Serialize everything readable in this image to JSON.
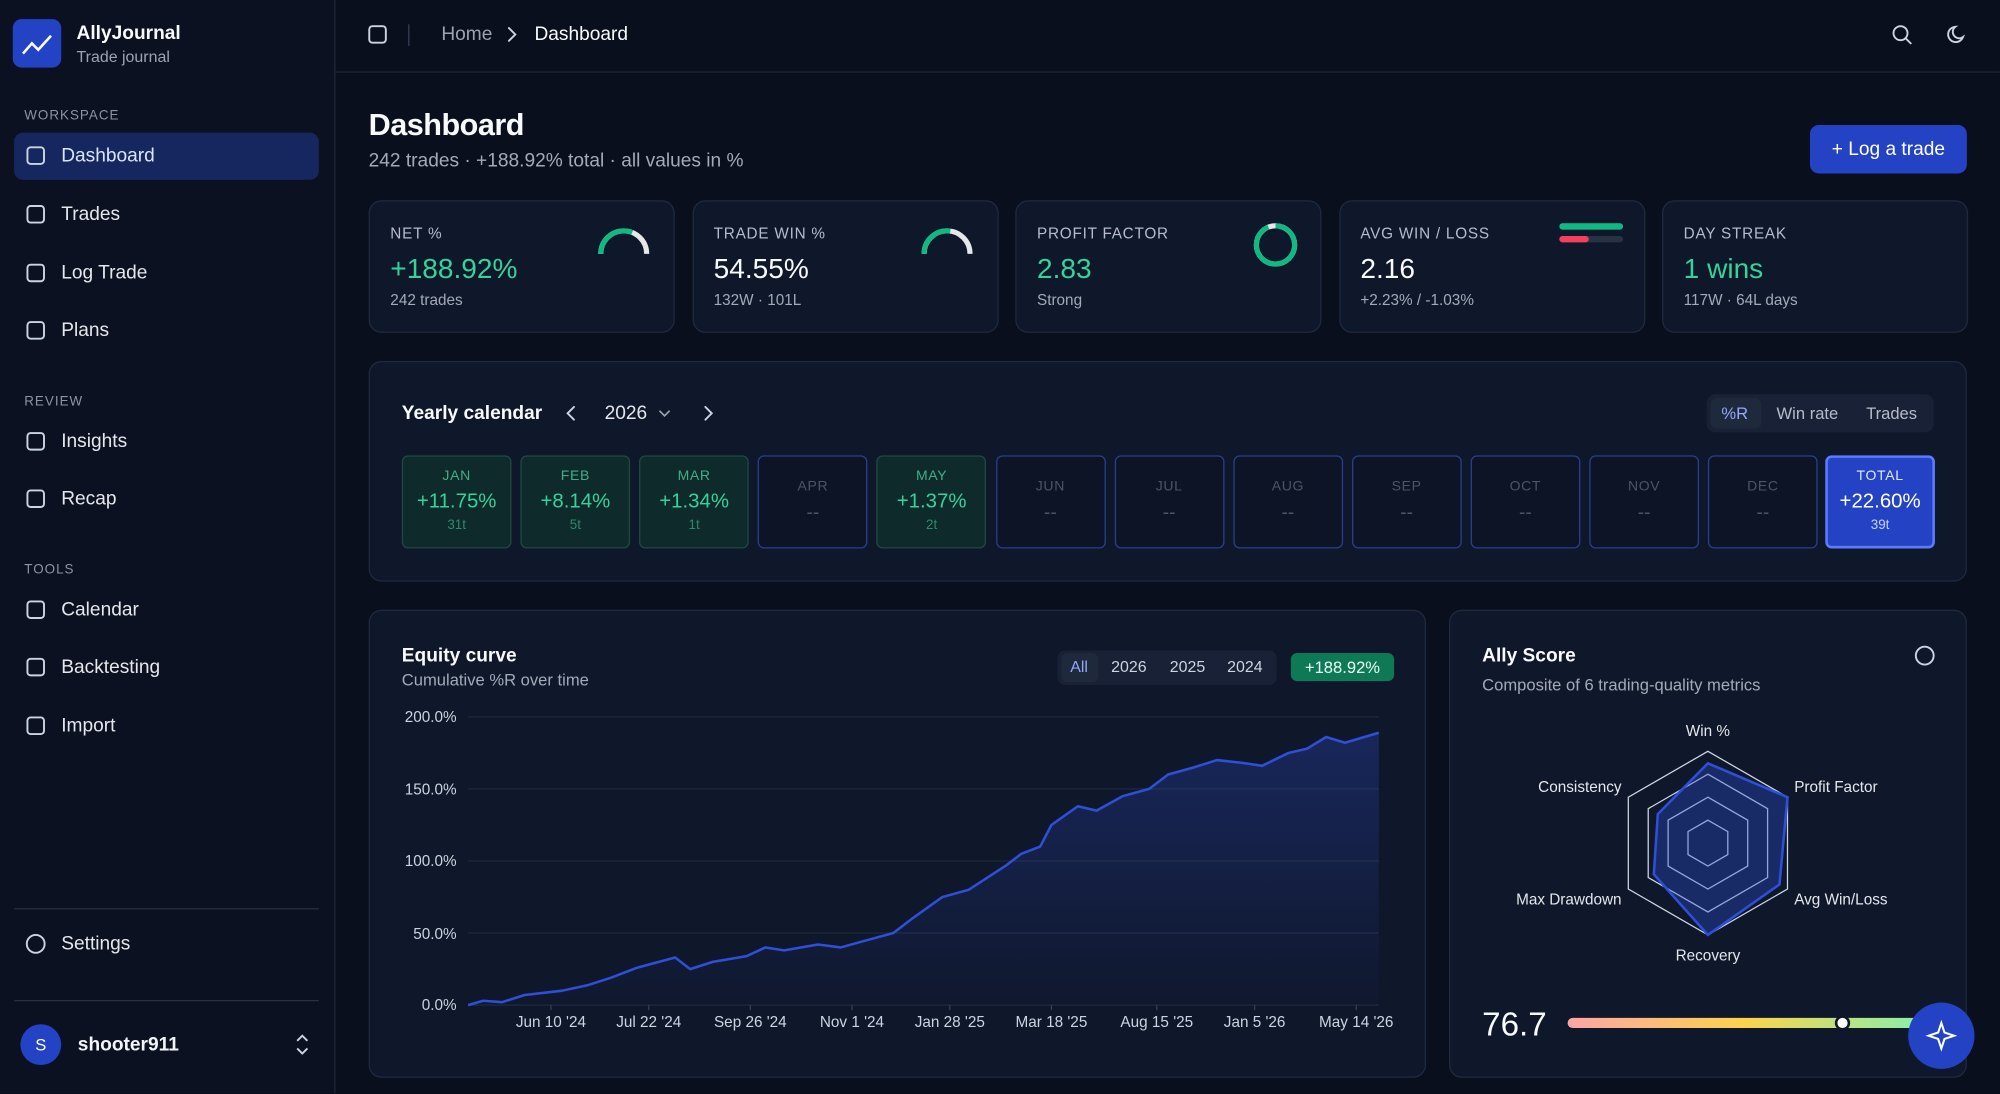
{
  "sidebar": {
    "brand": {
      "name": "AllyJournal",
      "subtitle": "Trade journal"
    },
    "sections": [
      {
        "label": "WORKSPACE",
        "items": [
          "Dashboard",
          "Trades",
          "Log Trade",
          "Plans"
        ]
      },
      {
        "label": "REVIEW",
        "items": [
          "Insights",
          "Recap"
        ]
      },
      {
        "label": "TOOLS",
        "items": [
          "Calendar",
          "Backtesting",
          "Import"
        ]
      }
    ],
    "settings": "Settings",
    "user": {
      "initial": "S",
      "name": "shooter911"
    }
  },
  "header": {
    "breadcrumb": [
      "Home",
      "Dashboard"
    ]
  },
  "page": {
    "title": "Dashboard",
    "subtitle": "242 trades · +188.92% total · all values in %",
    "action": "+ Log a trade"
  },
  "kpis": [
    {
      "label": "NET %",
      "value": "+188.92%",
      "note": "242 trades",
      "gauge": 62,
      "color": "#34d399"
    },
    {
      "label": "TRADE WIN %",
      "value": "54.55%",
      "note": "132W · 101L",
      "gauge": 54.55
    },
    {
      "label": "PROFIT FACTOR",
      "value": "2.83",
      "note": "Strong",
      "ring": 94,
      "color": "#34d399"
    },
    {
      "label": "AVG WIN / LOSS",
      "value": "2.16",
      "note": "+2.23% / -1.03%",
      "bars": [
        2.23,
        1.03
      ]
    },
    {
      "label": "DAY STREAK",
      "value": "1 wins",
      "note": "117W · 64L days",
      "color": "#34d399"
    }
  ],
  "calendar": {
    "title": "Yearly calendar",
    "year": "2026",
    "tabs": [
      "%R",
      "Win rate",
      "Trades"
    ],
    "months": [
      {
        "name": "JAN",
        "value": "+11.75%",
        "trades": "31t"
      },
      {
        "name": "FEB",
        "value": "+8.14%",
        "trades": "5t"
      },
      {
        "name": "MAR",
        "value": "+1.34%",
        "trades": "1t"
      },
      {
        "name": "APR",
        "value": "--"
      },
      {
        "name": "MAY",
        "value": "+1.37%",
        "trades": "2t"
      },
      {
        "name": "JUN",
        "value": "--"
      },
      {
        "name": "JUL",
        "value": "--"
      },
      {
        "name": "AUG",
        "value": "--"
      },
      {
        "name": "SEP",
        "value": "--"
      },
      {
        "name": "OCT",
        "value": "--"
      },
      {
        "name": "NOV",
        "value": "--"
      },
      {
        "name": "DEC",
        "value": "--"
      }
    ],
    "total": {
      "name": "TOTAL",
      "value": "+22.60%",
      "trades": "39t"
    }
  },
  "equity": {
    "title": "Equity curve",
    "subtitle": "Cumulative %R over time",
    "filters": [
      "All",
      "2026",
      "2025",
      "2024"
    ],
    "badge": "+188.92%"
  },
  "ally": {
    "title": "Ally Score",
    "subtitle": "Composite of 6 trading-quality metrics",
    "score": 76.7,
    "scale": [
      0,
      100
    ]
  },
  "chart_data": [
    {
      "type": "line",
      "color": "#2f4fd8",
      "grid": true,
      "x": [
        0,
        4,
        9,
        15,
        25,
        32,
        38,
        45,
        55,
        59,
        65,
        74,
        79,
        84,
        93,
        99,
        106,
        113,
        118,
        126,
        133,
        143,
        147,
        152,
        155,
        162,
        167,
        174,
        181,
        186,
        193,
        199,
        206,
        211,
        218,
        223,
        228,
        233,
        242
      ],
      "values": [
        0,
        3,
        2,
        7,
        10,
        14,
        19,
        26,
        33,
        25,
        30,
        34,
        40,
        38,
        42,
        40,
        45,
        50,
        60,
        75,
        80,
        97,
        105,
        110,
        125,
        138,
        135,
        145,
        150,
        160,
        165,
        170,
        168,
        166,
        175,
        178,
        186,
        182,
        188.92
      ],
      "xlim": [
        0,
        242
      ],
      "ylim": [
        0,
        200
      ],
      "xticks": [
        {
          "value": 22,
          "label": "Jun 10 '24"
        },
        {
          "value": 48,
          "label": "Jul 22 '24"
        },
        {
          "value": 75,
          "label": "Sep 26 '24"
        },
        {
          "value": 102,
          "label": "Nov 1 '24"
        },
        {
          "value": 128,
          "label": "Jan 28 '25"
        },
        {
          "value": 155,
          "label": "Mar 18 '25"
        },
        {
          "value": 183,
          "label": "Aug 15 '25"
        },
        {
          "value": 209,
          "label": "Jan 5 '26"
        },
        {
          "value": 236,
          "label": "May 14 '26"
        }
      ],
      "yticks": [
        {
          "value": 0,
          "label": "0.0%"
        },
        {
          "value": 50,
          "label": "50.0%"
        },
        {
          "value": 100,
          "label": "100.0%"
        },
        {
          "value": 150,
          "label": "150.0%"
        },
        {
          "value": 200,
          "label": "200.0%"
        }
      ]
    },
    {
      "type": "radar",
      "color": "#2f4fd8",
      "categories": [
        "Win %",
        "Profit Factor",
        "Avg Win/Loss",
        "Recovery",
        "Max Drawdown",
        "Consistency"
      ],
      "values": [
        87,
        100,
        90,
        100,
        68,
        63
      ],
      "rlim": [
        0,
        100
      ],
      "rticks": [
        25,
        50,
        75,
        100
      ]
    }
  ]
}
